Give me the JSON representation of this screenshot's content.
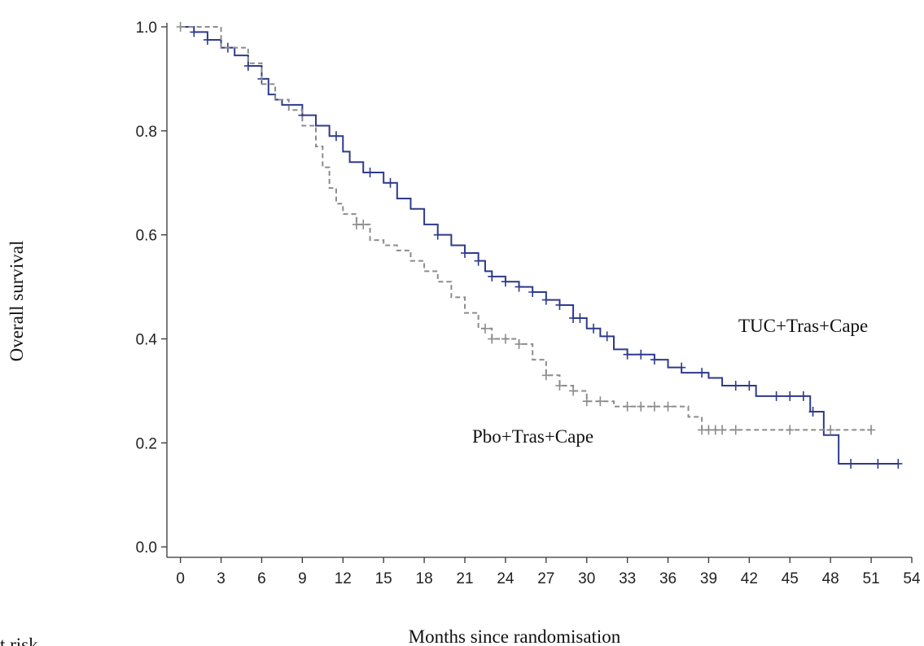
{
  "chart_data": {
    "type": "step",
    "x_label": "Months since randomisation",
    "y_label": "Overall survival",
    "footer": "t risk",
    "xlim": [
      -1,
      54
    ],
    "ylim": [
      -0.02,
      1.0
    ],
    "xticks": [
      0,
      3,
      6,
      9,
      12,
      15,
      18,
      21,
      24,
      27,
      30,
      33,
      36,
      39,
      42,
      45,
      48,
      51,
      54
    ],
    "yticks": [
      {
        "value": 0,
        "label": "0.0"
      },
      0.2,
      0.4,
      0.6,
      0.8,
      {
        "value": 1,
        "label": "1.0"
      }
    ],
    "series": [
      {
        "name": "TUC+Tras+Cape",
        "color": "#2e3a8c",
        "dashed": false,
        "x": [
          0,
          1,
          2,
          3,
          4,
          5,
          6,
          6.5,
          7,
          7.5,
          9,
          10,
          11,
          12,
          12.5,
          13.5,
          15,
          16,
          17,
          18,
          19,
          20,
          21,
          22,
          22.5,
          23,
          24,
          25,
          26,
          27,
          28,
          29,
          30,
          31,
          32,
          33,
          35,
          36,
          37,
          39,
          40,
          42.5,
          46.5,
          47.5,
          48.6,
          53
        ],
        "values": [
          1.0,
          0.99,
          0.975,
          0.96,
          0.945,
          0.925,
          0.9,
          0.87,
          0.86,
          0.85,
          0.83,
          0.81,
          0.79,
          0.76,
          0.74,
          0.72,
          0.7,
          0.67,
          0.65,
          0.62,
          0.6,
          0.58,
          0.565,
          0.55,
          0.53,
          0.52,
          0.51,
          0.5,
          0.49,
          0.475,
          0.465,
          0.44,
          0.42,
          0.405,
          0.38,
          0.37,
          0.36,
          0.345,
          0.335,
          0.325,
          0.31,
          0.29,
          0.26,
          0.215,
          0.16,
          0.16
        ],
        "censor_x": [
          1,
          2,
          3.5,
          5,
          6,
          9,
          11.5,
          14,
          15.5,
          19,
          21,
          22,
          23,
          24,
          25,
          26,
          27,
          28,
          29,
          29.5,
          30.5,
          31.5,
          33,
          34,
          35,
          37,
          38.5,
          41,
          42,
          44,
          45,
          46,
          46.7,
          49.5,
          51.5,
          53
        ],
        "censor_values": [
          0.99,
          0.975,
          0.96,
          0.925,
          0.9,
          0.83,
          0.79,
          0.72,
          0.7,
          0.6,
          0.565,
          0.55,
          0.52,
          0.51,
          0.5,
          0.49,
          0.475,
          0.465,
          0.44,
          0.44,
          0.42,
          0.405,
          0.37,
          0.37,
          0.36,
          0.345,
          0.335,
          0.31,
          0.31,
          0.29,
          0.29,
          0.29,
          0.26,
          0.16,
          0.16,
          0.16
        ]
      },
      {
        "name": "Pbo+Tras+Cape",
        "color": "#8c8c8c",
        "dashed": true,
        "x": [
          0,
          3,
          5,
          6,
          7,
          8,
          9,
          10,
          10.5,
          11,
          11.5,
          12,
          13,
          14,
          15,
          16,
          17,
          18,
          19,
          20,
          21,
          22,
          23,
          25,
          26,
          27,
          28,
          29,
          30,
          32,
          37.5,
          38.5,
          51
        ],
        "values": [
          1.0,
          0.96,
          0.93,
          0.89,
          0.86,
          0.84,
          0.81,
          0.77,
          0.73,
          0.69,
          0.66,
          0.64,
          0.62,
          0.59,
          0.58,
          0.57,
          0.55,
          0.53,
          0.51,
          0.48,
          0.45,
          0.42,
          0.4,
          0.39,
          0.36,
          0.33,
          0.31,
          0.3,
          0.28,
          0.27,
          0.25,
          0.225,
          0.225
        ],
        "censor_x": [
          0,
          13,
          13.5,
          22.5,
          23,
          24,
          25,
          27,
          28,
          29,
          30,
          31,
          33,
          34,
          35,
          36,
          38.5,
          39,
          39.5,
          40,
          41,
          45,
          48,
          51
        ],
        "censor_values": [
          1.0,
          0.62,
          0.62,
          0.42,
          0.4,
          0.4,
          0.39,
          0.33,
          0.31,
          0.3,
          0.28,
          0.28,
          0.27,
          0.27,
          0.27,
          0.27,
          0.225,
          0.225,
          0.225,
          0.225,
          0.225,
          0.225,
          0.225,
          0.225
        ]
      }
    ]
  }
}
